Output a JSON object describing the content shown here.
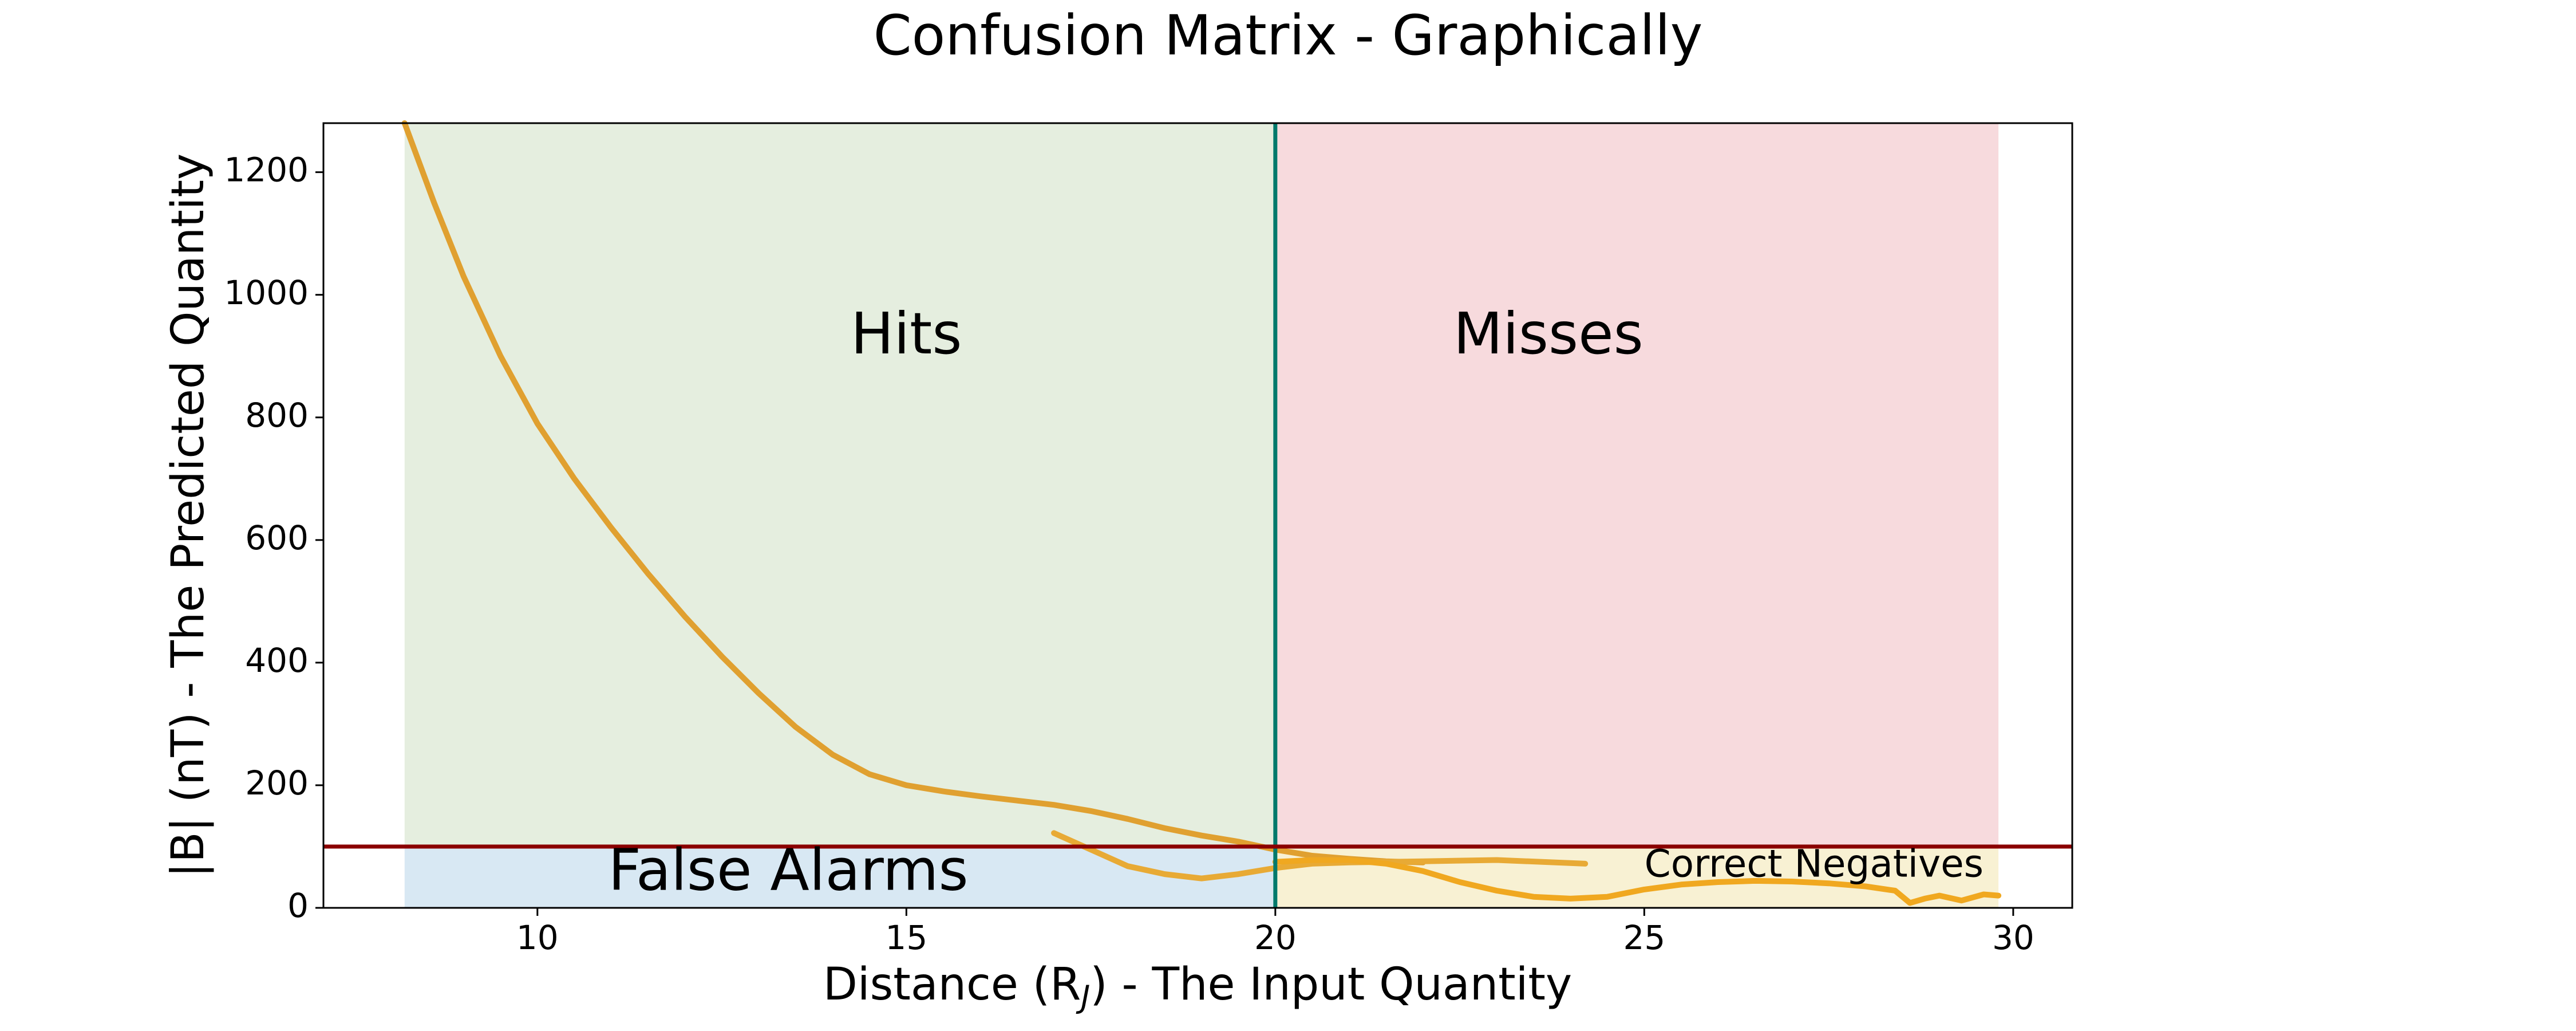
{
  "chart_data": {
    "type": "line",
    "title": "Confusion Matrix - Graphically",
    "xlabel": "Distance (R",
    "xlabel_sub": "J",
    "xlabel_suffix": ") - The Input Quantity",
    "ylabel": "|B| (nT) - The Predicted Quantity",
    "xlim": [
      7.1,
      30.8
    ],
    "ylim": [
      0,
      1280
    ],
    "xticks": [
      10,
      15,
      20,
      25,
      30
    ],
    "yticks": [
      0,
      200,
      400,
      600,
      800,
      1000,
      1200
    ],
    "grid": false,
    "thresholds": {
      "x": 20,
      "y": 100,
      "x_color": "#00796b",
      "y_color": "#8b0000"
    },
    "regions": [
      {
        "label": "Hits",
        "x": [
          8.2,
          20
        ],
        "y": [
          100,
          1280
        ],
        "color": "#e5eedf",
        "text_pos": [
          15,
          930
        ]
      },
      {
        "label": "Misses",
        "x": [
          20,
          29.8
        ],
        "y": [
          100,
          1280
        ],
        "color": "#f7dadd",
        "text_pos": [
          23.7,
          930
        ]
      },
      {
        "label": "False Alarms",
        "x": [
          8.2,
          20
        ],
        "y": [
          0,
          100
        ],
        "color": "#d8e8f3",
        "text_pos": [
          13.4,
          55
        ]
      },
      {
        "label": "Correct Negatives",
        "x": [
          20,
          29.8
        ],
        "y": [
          0,
          100
        ],
        "color": "#f8f1d3",
        "text_pos": [
          27.3,
          68
        ]
      }
    ],
    "series": [
      {
        "color": "#e0a030",
        "points": [
          [
            8.2,
            1280
          ],
          [
            8.6,
            1150
          ],
          [
            9,
            1030
          ],
          [
            9.5,
            900
          ],
          [
            10,
            790
          ],
          [
            10.5,
            700
          ],
          [
            11,
            620
          ],
          [
            11.5,
            545
          ],
          [
            12,
            475
          ],
          [
            12.5,
            410
          ],
          [
            13,
            350
          ],
          [
            13.5,
            295
          ],
          [
            14,
            250
          ],
          [
            14.5,
            218
          ],
          [
            15,
            200
          ],
          [
            15.5,
            190
          ],
          [
            16,
            182
          ],
          [
            16.5,
            175
          ],
          [
            17,
            168
          ],
          [
            17.5,
            158
          ],
          [
            18,
            145
          ],
          [
            18.5,
            130
          ],
          [
            19,
            118
          ],
          [
            19.5,
            108
          ],
          [
            20,
            95
          ],
          [
            20.5,
            85
          ],
          [
            21,
            80
          ],
          [
            21.5,
            76
          ],
          [
            22,
            74
          ]
        ]
      },
      {
        "color": "#e8aa35",
        "points": [
          [
            17,
            122
          ],
          [
            17.5,
            95
          ],
          [
            18,
            68
          ],
          [
            18.5,
            55
          ],
          [
            19,
            48
          ],
          [
            19.5,
            55
          ],
          [
            20,
            65
          ],
          [
            20.5,
            72
          ],
          [
            21,
            74
          ],
          [
            22,
            76
          ],
          [
            23,
            78
          ],
          [
            24.2,
            72
          ]
        ]
      },
      {
        "color": "#f0a820",
        "points": [
          [
            20,
            75
          ],
          [
            20.5,
            78
          ],
          [
            21,
            78
          ],
          [
            21.5,
            72
          ],
          [
            22,
            60
          ],
          [
            22.5,
            42
          ],
          [
            23,
            28
          ],
          [
            23.5,
            18
          ],
          [
            24,
            15
          ],
          [
            24.5,
            18
          ],
          [
            25,
            30
          ],
          [
            25.5,
            38
          ],
          [
            26,
            42
          ],
          [
            26.5,
            44
          ],
          [
            27,
            43
          ],
          [
            27.5,
            40
          ],
          [
            28,
            35
          ],
          [
            28.4,
            28
          ],
          [
            28.6,
            8
          ],
          [
            28.8,
            15
          ],
          [
            29,
            20
          ],
          [
            29.3,
            12
          ],
          [
            29.6,
            22
          ],
          [
            29.8,
            20
          ]
        ]
      }
    ]
  }
}
